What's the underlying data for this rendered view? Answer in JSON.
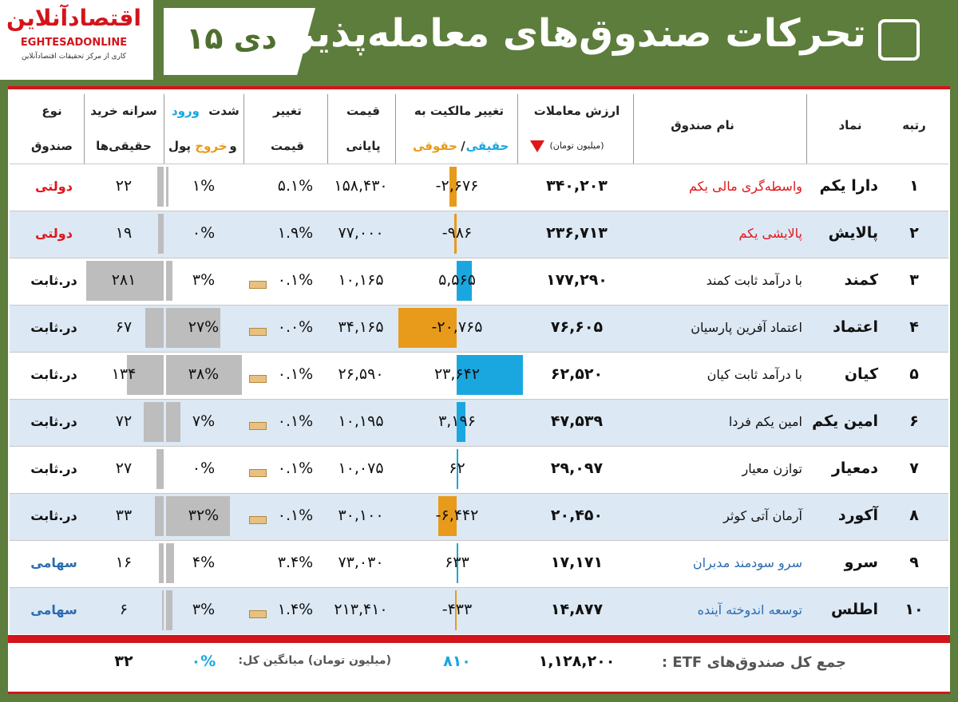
{
  "header": {
    "title": "تحرکات صندوق‌های معامله‌پذیر",
    "date": "۱۵ دی",
    "logo": "اقتصادآنلاین",
    "logo_latin": "EGHTESADONLINE",
    "logo_sub": "کاری از مرکز تحقیقات اقتصادآنلاین"
  },
  "table": {
    "headers": {
      "rank": "رتبه",
      "symbol": "نماد",
      "name": "نام صندوق",
      "value": [
        "ارزش معاملات",
        "(میلیون تومان)"
      ],
      "ownership": [
        "تغییر مالکیت به",
        "حقیقی",
        "/",
        "حقوقی"
      ],
      "price": [
        "قیمت",
        "پایانی"
      ],
      "change": [
        "تغییر",
        "قیمت"
      ],
      "intensity": [
        "شدت",
        "ورود",
        "و",
        "خروج",
        "پول"
      ],
      "per_capita": [
        "سرانه خرید",
        "حقیقی‌ها"
      ],
      "type": [
        "نوع",
        "صندوق"
      ]
    },
    "positive_color": "#1aa7e0",
    "negative_color": "#e89a1a",
    "bar_color": "#bdbdbd",
    "rows": [
      [
        "۱",
        "دارا یکم",
        "واسطه‌گری مالی یکم",
        "۳۴۰,۲۰۳",
        "-۲,۶۷۶",
        "۱۵۸,۴۳۰",
        "۵.۱%",
        "۱%",
        "۲۲",
        "دولتی",
        "up",
        "#e0161b"
      ],
      [
        "۲",
        "پالایش",
        "پالایشی یکم",
        "۲۳۶,۷۱۳",
        "-۹۸۶",
        "۷۷,۰۰۰",
        "۱.۹%",
        "۰%",
        "۱۹",
        "دولتی",
        "up",
        "#e0161b"
      ],
      [
        "۳",
        "کمند",
        "با درآمد ثابت کمند",
        "۱۷۷,۲۹۰",
        "۵,۵۶۵",
        "۱۰,۱۶۵",
        "۰.۱%",
        "۳%",
        "۲۸۱",
        "در.ثابت",
        "flat",
        "#111111"
      ],
      [
        "۴",
        "اعتماد",
        "اعتماد آفرین پارسیان",
        "۷۶,۶۰۵",
        "-۲۰,۷۶۵",
        "۳۴,۱۶۵",
        "۰.۰%",
        "۲۷%",
        "۶۷",
        "در.ثابت",
        "flat",
        "#111111"
      ],
      [
        "۵",
        "کیان",
        "با درآمد ثابت کیان",
        "۶۲,۵۲۰",
        "۲۳,۶۴۲",
        "۲۶,۵۹۰",
        "۰.۱%",
        "۳۸%",
        "۱۳۴",
        "در.ثابت",
        "flat",
        "#111111"
      ],
      [
        "۶",
        "امین یکم",
        "امین یکم فردا",
        "۴۷,۵۳۹",
        "۳,۱۹۶",
        "۱۰,۱۹۵",
        "۰.۱%",
        "۷%",
        "۷۲",
        "در.ثابت",
        "flat",
        "#111111"
      ],
      [
        "۷",
        "دمعیار",
        "توازن معیار",
        "۲۹,۰۹۷",
        "۶۲",
        "۱۰,۰۷۵",
        "۰.۱%",
        "۰%",
        "۲۷",
        "در.ثابت",
        "flat",
        "#111111"
      ],
      [
        "۸",
        "آکورد",
        "آرمان آتی کوثر",
        "۲۰,۴۵۰",
        "-۶,۴۴۲",
        "۳۰,۱۰۰",
        "۰.۱%",
        "۳۲%",
        "۳۳",
        "در.ثابت",
        "flat",
        "#111111"
      ],
      [
        "۹",
        "سرو",
        "سرو سودمند مدبران",
        "۱۷,۱۷۱",
        "۶۳۳",
        "۷۳,۰۳۰",
        "۳.۴%",
        "۴%",
        "۱۶",
        "سهامی",
        "up",
        "#2a6cb0"
      ],
      [
        "۱۰",
        "اطلس",
        "توسعه اندوخته آینده",
        "۱۴,۸۷۷",
        "-۴۳۳",
        "۲۱۳,۴۱۰",
        "۱.۴%",
        "۳%",
        "۶",
        "سهامی",
        "flat",
        "#2a6cb0"
      ]
    ],
    "footer": {
      "label": "جمع کل صندوق‌های ETF :",
      "total_value": "۱,۱۲۸,۲۰۰",
      "total_ownership": "۸۱۰",
      "avg_label": "(میلیون تومان) میانگین کل:",
      "avg_intensity": "۰%",
      "avg_per_capita": "۳۲"
    }
  }
}
